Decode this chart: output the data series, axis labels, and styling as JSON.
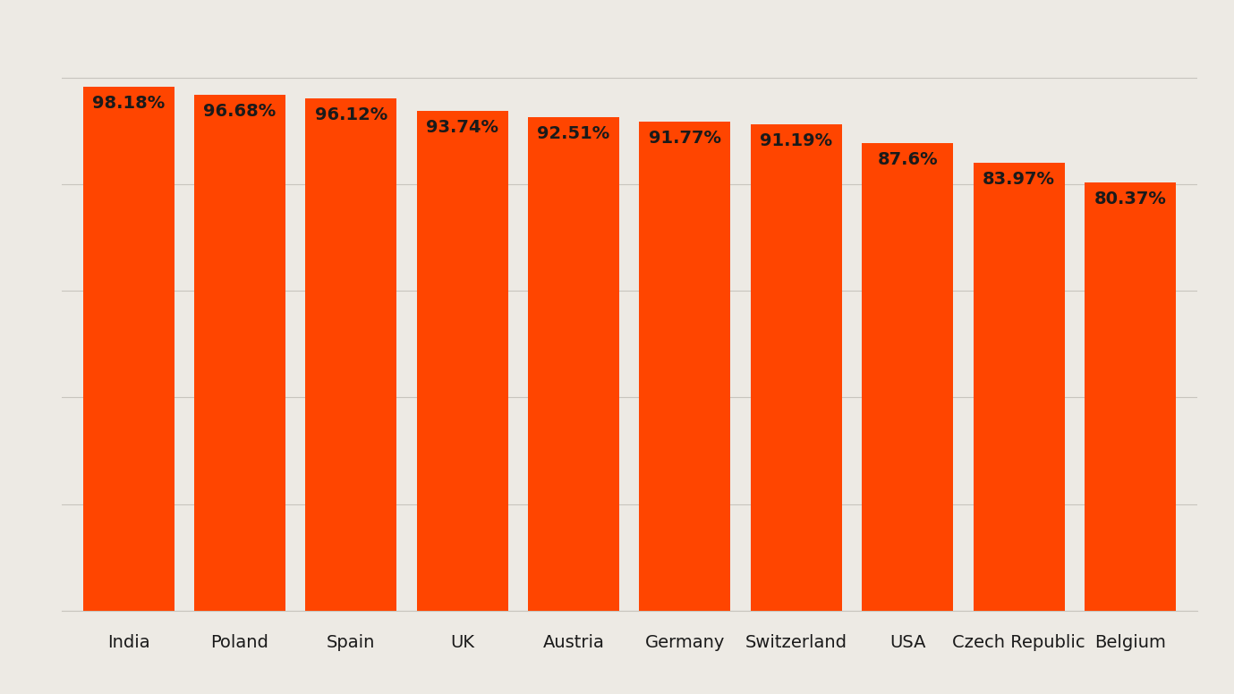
{
  "categories": [
    "India",
    "Poland",
    "Spain",
    "UK",
    "Austria",
    "Germany",
    "Switzerland",
    "USA",
    "Czech Republic",
    "Belgium"
  ],
  "values": [
    98.18,
    96.68,
    96.12,
    93.74,
    92.51,
    91.77,
    91.19,
    87.6,
    83.97,
    80.37
  ],
  "labels": [
    "98.18%",
    "96.68%",
    "96.12%",
    "93.74%",
    "92.51%",
    "91.77%",
    "91.19%",
    "87.6%",
    "83.97%",
    "80.37%"
  ],
  "bar_color": "#FF4500",
  "background_color": "#EDEAE4",
  "text_color": "#1a1a1a",
  "label_fontsize": 14,
  "tick_fontsize": 14,
  "ylim": [
    0,
    108
  ],
  "grid_color": "#C8C5BE",
  "bar_width": 0.82
}
